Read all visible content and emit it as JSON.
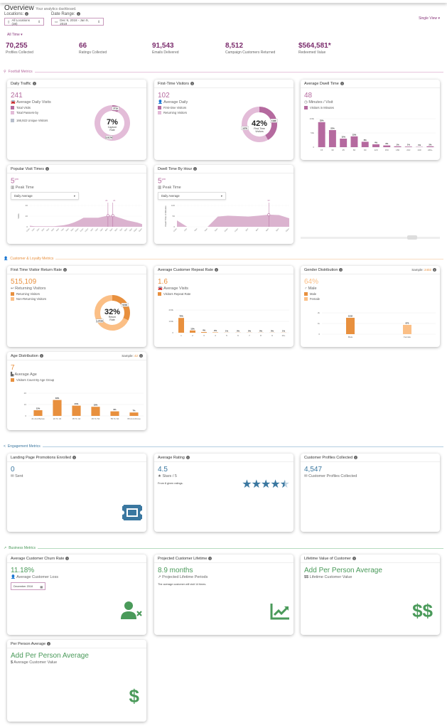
{
  "header": {
    "title": "Overview",
    "subtitle": "Your analytics dashboard.",
    "single_view": "Single View ▾",
    "time_filter": "All Time ▾"
  },
  "filters": {
    "locations_label": "Locations:",
    "locations_value": "All Locations (38)",
    "date_label": "Date Range:",
    "date_value": "Dec 9, 2018 - Jan 9, 2019"
  },
  "kpis": [
    {
      "value": "70,255",
      "label": "Profiles Collected"
    },
    {
      "value": "66",
      "label": "Ratings Collected"
    },
    {
      "value": "91,543",
      "label": "Emails Delivered"
    },
    {
      "value": "8,512",
      "label": "Campaign Customers Returned"
    },
    {
      "value": "$564,581*",
      "label": "Redeemed Value"
    }
  ],
  "colors": {
    "footfall": "#b56a9f",
    "footfall_light": "#e3bcd8",
    "loyalty": "#e8903e",
    "loyalty_light": "#fbbf86",
    "engagement": "#3a77a0",
    "business": "#4a9a5a"
  },
  "sections": {
    "footfall": "Footfall Metrics",
    "loyalty": "Customer & Loyalty Metrics",
    "engagement": "Engagement Metrics",
    "business": "Business Metrics"
  },
  "daily_traffic": {
    "title": "Daily Traffic",
    "value": "241",
    "sub": "Average Daily Visits",
    "legend": [
      "Total Visits",
      "Total Passers-by"
    ],
    "unique": "166,922 Unique Visitors",
    "center": "7%",
    "center_label": "Capture Rate",
    "labels": [
      "2719",
      "3,817K"
    ],
    "chart_data": {
      "type": "pie",
      "values": [
        7,
        93
      ]
    }
  },
  "first_time": {
    "title": "First-Time Visitors",
    "value": "102",
    "sub": "Average Daily",
    "legend": [
      "First-time Visitors",
      "Returning Visitors"
    ],
    "center": "42%",
    "center_label": "First-Time Visitors",
    "labels": [
      "119K",
      "167K"
    ],
    "chart_data": {
      "type": "pie",
      "values": [
        42,
        58
      ]
    }
  },
  "dwell": {
    "title": "Average Dwell Time",
    "value": "48",
    "sub": "Minutes / Visit",
    "legend": "Visitors in Minutes",
    "chart_data": {
      "type": "bar",
      "categories": [
        "15",
        "30",
        "45",
        "60",
        "90",
        "120",
        "150",
        "180",
        "210",
        "240",
        "240+"
      ],
      "values": [
        88,
        60,
        30,
        38,
        19,
        10,
        6,
        3,
        2,
        1,
        3
      ],
      "labels": [
        "33%",
        "23%",
        "12%",
        "15%",
        "8%",
        "4%",
        "3%",
        "1%",
        "1%",
        "1%",
        "2%"
      ],
      "yticks": [
        "0",
        "50k",
        "100k"
      ],
      "ylim": [
        0,
        100
      ]
    }
  },
  "popular": {
    "title": "Popular Visit Times",
    "value": "5",
    "sup": "pm",
    "sub": "Peak Time",
    "select": "Daily Average",
    "ylabel": "Visits",
    "markers": [
      "21",
      "21"
    ],
    "chart_data": {
      "type": "area",
      "categories": [
        "12am",
        "1am",
        "2am",
        "3am",
        "4am",
        "5am",
        "6am",
        "7am",
        "8am",
        "9am",
        "10am",
        "11am",
        "12pm",
        "1pm",
        "2pm",
        "3pm",
        "4pm",
        "5pm",
        "6pm",
        "7pm",
        "8pm",
        "9pm",
        "10pm",
        "11pm"
      ],
      "values": [
        2,
        1,
        1,
        1,
        1,
        1,
        2,
        3,
        5,
        8,
        12,
        17,
        17,
        17,
        17,
        19,
        21,
        21,
        18,
        15,
        12,
        10,
        8,
        5
      ],
      "yticks": [
        "0",
        "20",
        "40"
      ],
      "ylim": [
        0,
        40
      ]
    }
  },
  "dwell_hour": {
    "title": "Dwell Time By Hour",
    "value": "5",
    "sup": "pm",
    "sub": "Peak Time",
    "select": "Daily Average",
    "ylabel": "Dwell Time in Minutes",
    "marker": "57",
    "chart_data": {
      "type": "area",
      "categories": [
        "12am",
        "2am",
        "4am",
        "6am",
        "8am",
        "10am",
        "12pm",
        "2pm",
        "4pm",
        "6pm",
        "8pm",
        "10pm"
      ],
      "values": [
        30,
        0,
        0,
        0,
        48,
        52,
        50,
        48,
        52,
        57,
        55,
        40
      ],
      "yticks": [
        "0",
        "50",
        "100"
      ],
      "ylim": [
        0,
        100
      ]
    }
  },
  "return_rate": {
    "title": "First Time Visitor Return Rate",
    "value": "515,109",
    "sub": "Returning Visitors",
    "legend": [
      "Returning Visitors",
      "Non-Returning Visitors"
    ],
    "center": "32%",
    "center_label": "Return Rate",
    "labels": [
      "515K",
      "1,072K"
    ],
    "chart_data": {
      "type": "pie",
      "values": [
        32,
        68
      ]
    }
  },
  "repeat": {
    "title": "Average Customer Repeat Rate",
    "value": "1.6",
    "sub": "Average Visits",
    "legend": "Visitors Repeat Rate",
    "chart_data": {
      "type": "bar",
      "categories": [
        "1",
        "2",
        "3",
        "4",
        "5",
        "6",
        "7",
        "8",
        "9",
        "10+"
      ],
      "values": [
        130,
        20,
        6,
        3,
        1,
        1,
        1,
        1,
        1,
        1
      ],
      "labels": [
        "79%",
        "13%",
        "4%",
        "2%",
        "1%",
        "0%",
        "0%",
        "0%",
        "0%",
        "1%"
      ],
      "yticks": [
        "0",
        "100k",
        "200k"
      ],
      "ylim": [
        0,
        200
      ]
    }
  },
  "gender": {
    "title": "Gender Distribution",
    "sample_label": "Sample:",
    "sample": "2402",
    "value": "64%",
    "sub": "Male",
    "legend": [
      "Male",
      "Female"
    ],
    "chart_data": {
      "type": "bar",
      "categories": [
        "Male",
        "Female"
      ],
      "values": [
        1532,
        870
      ],
      "labels": [
        "1532",
        "870"
      ],
      "yticks": [
        "0",
        "1k",
        "2k"
      ],
      "ylim": [
        0,
        2000
      ]
    }
  },
  "age": {
    "title": "Age Distribution",
    "sample_label": "Sample:",
    "sample": "42",
    "value": "7",
    "sub": "Average Age",
    "legend": "Visitors Count By Age Group",
    "chart_data": {
      "type": "bar",
      "categories": [
        "21 And Below",
        "22 To 34",
        "35 To 44",
        "45 To 54",
        "55 To 64",
        "65 And Above"
      ],
      "values": [
        5,
        14,
        9,
        8,
        4,
        3
      ],
      "labels": [
        "12%",
        "33%",
        "21%",
        "19%",
        "9%",
        "7%"
      ],
      "yticks": [
        "0",
        "10",
        "20"
      ],
      "ylim": [
        0,
        20
      ]
    }
  },
  "landing": {
    "title": "Landing Page Promotions Enrolled",
    "value": "0",
    "sub": "Sent"
  },
  "rating": {
    "title": "Average Rating",
    "value": "4.5",
    "sub": "Stars / 5",
    "note": "From 8 given ratings.",
    "stars": 4.5
  },
  "profiles": {
    "title": "Customer Profiles Collected",
    "value": "4,547",
    "sub": "Customer Profiles Collected"
  },
  "churn": {
    "title": "Average Customer Churn Rate",
    "value": "11.18%",
    "sub": "Average Customer Loss",
    "month": "December 2018"
  },
  "lifetime": {
    "title": "Projected Customer Lifetime",
    "value": "8.9 months",
    "sub": "Projected Lifetime Periods",
    "note": "The average customer will visit 14 times."
  },
  "ltv": {
    "title": "Lifetime Value of Customer",
    "value": "Add Per Person Average",
    "sub": "Lifetime Customer Value",
    "sub_icon": "$$"
  },
  "ppa": {
    "title": "Per Person Average",
    "value": "Add Per Person Average",
    "sub": "Average Customer Value",
    "sub_icon": "$"
  }
}
